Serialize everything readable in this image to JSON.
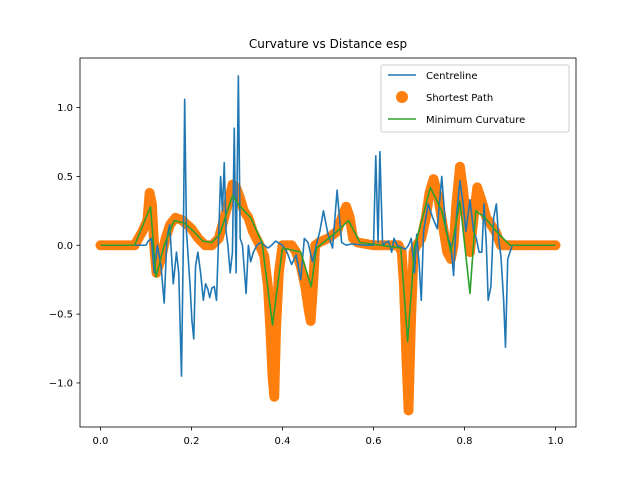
{
  "chart_data": {
    "type": "line",
    "title": "Curvature vs Distance esp",
    "xlabel": "",
    "ylabel": "",
    "xlim": [
      -0.045,
      1.045
    ],
    "ylim": [
      -1.32,
      1.36
    ],
    "xticks": [
      0.0,
      0.2,
      0.4,
      0.6,
      0.8,
      1.0
    ],
    "xtick_labels": [
      "0.0",
      "0.2",
      "0.4",
      "0.6",
      "0.8",
      "1.0"
    ],
    "yticks": [
      -1.0,
      -0.5,
      0.0,
      0.5,
      1.0
    ],
    "ytick_labels": [
      "−1.0",
      "−0.5",
      "0.0",
      "0.5",
      "1.0"
    ],
    "grid": false,
    "legend_position": "upper right",
    "series": [
      {
        "name": "Centreline",
        "kind": "line",
        "color": "#1f77b4",
        "points": [
          [
            0.0,
            0.0
          ],
          [
            0.1,
            0.0
          ],
          [
            0.105,
            0.03
          ],
          [
            0.112,
            0.05
          ],
          [
            0.118,
            -0.2
          ],
          [
            0.125,
            0.0
          ],
          [
            0.133,
            -0.15
          ],
          [
            0.14,
            -0.42
          ],
          [
            0.146,
            0.05
          ],
          [
            0.152,
            0.15
          ],
          [
            0.16,
            -0.28
          ],
          [
            0.167,
            -0.05
          ],
          [
            0.172,
            -0.2
          ],
          [
            0.178,
            -0.95
          ],
          [
            0.182,
            0.0
          ],
          [
            0.185,
            1.06
          ],
          [
            0.189,
            0.1
          ],
          [
            0.193,
            -0.1
          ],
          [
            0.197,
            -0.3
          ],
          [
            0.201,
            -0.55
          ],
          [
            0.205,
            -0.68
          ],
          [
            0.209,
            -0.15
          ],
          [
            0.214,
            -0.05
          ],
          [
            0.22,
            -0.2
          ],
          [
            0.226,
            -0.4
          ],
          [
            0.231,
            -0.28
          ],
          [
            0.236,
            -0.32
          ],
          [
            0.24,
            -0.38
          ],
          [
            0.245,
            -0.31
          ],
          [
            0.25,
            -0.3
          ],
          [
            0.255,
            -0.4
          ],
          [
            0.26,
            0.1
          ],
          [
            0.264,
            0.5
          ],
          [
            0.268,
            0.25
          ],
          [
            0.272,
            0.6
          ],
          [
            0.276,
            0.1
          ],
          [
            0.28,
            0.0
          ],
          [
            0.285,
            -0.2
          ],
          [
            0.29,
            -0.05
          ],
          [
            0.294,
            0.85
          ],
          [
            0.298,
            -0.2
          ],
          [
            0.303,
            1.23
          ],
          [
            0.307,
            0.05
          ],
          [
            0.312,
            0.0
          ],
          [
            0.32,
            -0.35
          ],
          [
            0.325,
            0.0
          ],
          [
            0.33,
            -0.12
          ],
          [
            0.336,
            -0.05
          ],
          [
            0.344,
            0.0
          ],
          [
            0.352,
            0.02
          ],
          [
            0.36,
            0.0
          ],
          [
            0.368,
            -0.02
          ],
          [
            0.376,
            0.0
          ],
          [
            0.385,
            0.03
          ],
          [
            0.4,
            0.0
          ],
          [
            0.41,
            -0.05
          ],
          [
            0.42,
            -0.14
          ],
          [
            0.43,
            -0.07
          ],
          [
            0.44,
            -0.25
          ],
          [
            0.448,
            0.05
          ],
          [
            0.456,
            0.02
          ],
          [
            0.466,
            -0.12
          ],
          [
            0.474,
            0.0
          ],
          [
            0.482,
            0.1
          ],
          [
            0.49,
            0.25
          ],
          [
            0.5,
            0.08
          ],
          [
            0.51,
            -0.02
          ],
          [
            0.52,
            0.4
          ],
          [
            0.53,
            0.02
          ],
          [
            0.54,
            0.0
          ],
          [
            0.552,
            0.01
          ],
          [
            0.58,
            0.0
          ],
          [
            0.6,
            0.0
          ],
          [
            0.605,
            0.65
          ],
          [
            0.61,
            0.02
          ],
          [
            0.614,
            0.68
          ],
          [
            0.62,
            0.0
          ],
          [
            0.627,
            0.02
          ],
          [
            0.633,
            0.03
          ],
          [
            0.64,
            -0.05
          ],
          [
            0.645,
            0.05
          ],
          [
            0.652,
            0.0
          ],
          [
            0.67,
            -0.03
          ],
          [
            0.677,
            0.0
          ],
          [
            0.683,
            0.05
          ],
          [
            0.69,
            -0.2
          ],
          [
            0.695,
            0.08
          ],
          [
            0.7,
            -0.12
          ],
          [
            0.705,
            -0.4
          ],
          [
            0.71,
            0.1
          ],
          [
            0.72,
            0.3
          ],
          [
            0.73,
            0.2
          ],
          [
            0.74,
            0.12
          ],
          [
            0.75,
            0.5
          ],
          [
            0.758,
            0.15
          ],
          [
            0.764,
            0.05
          ],
          [
            0.77,
            0.0
          ],
          [
            0.776,
            -0.22
          ],
          [
            0.782,
            0.2
          ],
          [
            0.79,
            0.47
          ],
          [
            0.797,
            0.3
          ],
          [
            0.803,
            0.1
          ],
          [
            0.812,
            0.33
          ],
          [
            0.82,
            0.1
          ],
          [
            0.826,
            0.05
          ],
          [
            0.832,
            -0.05
          ],
          [
            0.838,
            -0.05
          ],
          [
            0.843,
            0.3
          ],
          [
            0.848,
            0.0
          ],
          [
            0.852,
            -0.4
          ],
          [
            0.858,
            -0.3
          ],
          [
            0.864,
            0.2
          ],
          [
            0.87,
            0.3
          ],
          [
            0.875,
            0.05
          ],
          [
            0.88,
            -0.08
          ],
          [
            0.886,
            -0.4
          ],
          [
            0.89,
            -0.74
          ],
          [
            0.895,
            -0.1
          ],
          [
            0.9,
            -0.05
          ],
          [
            0.905,
            0.0
          ],
          [
            1.0,
            0.0
          ]
        ]
      },
      {
        "name": "Shortest Path",
        "kind": "scatter",
        "color": "#ff7f0e",
        "segments": [
          [
            0.0,
            0.0
          ],
          [
            0.075,
            0.0
          ],
          [
            0.092,
            0.1
          ],
          [
            0.103,
            0.18
          ],
          [
            0.108,
            0.38
          ],
          [
            0.113,
            0.3
          ],
          [
            0.118,
            0.0
          ],
          [
            0.123,
            -0.2
          ],
          [
            0.133,
            -0.1
          ],
          [
            0.143,
            0.05
          ],
          [
            0.153,
            0.15
          ],
          [
            0.165,
            0.2
          ],
          [
            0.18,
            0.18
          ],
          [
            0.2,
            0.12
          ],
          [
            0.215,
            0.05
          ],
          [
            0.23,
            0.0
          ],
          [
            0.245,
            0.0
          ],
          [
            0.26,
            0.05
          ],
          [
            0.272,
            0.2
          ],
          [
            0.282,
            0.32
          ],
          [
            0.29,
            0.44
          ],
          [
            0.298,
            0.42
          ],
          [
            0.306,
            0.35
          ],
          [
            0.315,
            0.25
          ],
          [
            0.325,
            0.2
          ],
          [
            0.335,
            0.1
          ],
          [
            0.35,
            0.0
          ],
          [
            0.36,
            -0.08
          ],
          [
            0.368,
            -0.3
          ],
          [
            0.373,
            -0.6
          ],
          [
            0.378,
            -0.95
          ],
          [
            0.382,
            -1.1
          ],
          [
            0.386,
            -0.6
          ],
          [
            0.392,
            -0.2
          ],
          [
            0.4,
            0.0
          ],
          [
            0.42,
            0.0
          ],
          [
            0.43,
            -0.05
          ],
          [
            0.44,
            -0.15
          ],
          [
            0.45,
            -0.3
          ],
          [
            0.458,
            -0.48
          ],
          [
            0.462,
            -0.55
          ],
          [
            0.467,
            -0.3
          ],
          [
            0.472,
            0.0
          ],
          [
            0.48,
            0.02
          ],
          [
            0.5,
            0.05
          ],
          [
            0.52,
            0.1
          ],
          [
            0.53,
            0.2
          ],
          [
            0.54,
            0.28
          ],
          [
            0.548,
            0.2
          ],
          [
            0.555,
            0.05
          ],
          [
            0.565,
            0.02
          ],
          [
            0.6,
            0.0
          ],
          [
            0.63,
            0.0
          ],
          [
            0.645,
            0.0
          ],
          [
            0.655,
            0.0
          ],
          [
            0.662,
            -0.05
          ],
          [
            0.667,
            -0.3
          ],
          [
            0.672,
            -0.8
          ],
          [
            0.677,
            -1.2
          ],
          [
            0.682,
            -0.6
          ],
          [
            0.688,
            -0.05
          ],
          [
            0.695,
            0.0
          ],
          [
            0.705,
            0.05
          ],
          [
            0.715,
            0.2
          ],
          [
            0.723,
            0.38
          ],
          [
            0.732,
            0.48
          ],
          [
            0.742,
            0.35
          ],
          [
            0.752,
            0.15
          ],
          [
            0.762,
            -0.05
          ],
          [
            0.77,
            -0.1
          ],
          [
            0.776,
            0.0
          ],
          [
            0.782,
            0.3
          ],
          [
            0.79,
            0.57
          ],
          [
            0.797,
            0.4
          ],
          [
            0.805,
            0.15
          ],
          [
            0.812,
            -0.05
          ],
          [
            0.82,
            0.2
          ],
          [
            0.828,
            0.42
          ],
          [
            0.838,
            0.32
          ],
          [
            0.848,
            0.2
          ],
          [
            0.858,
            0.15
          ],
          [
            0.868,
            0.1
          ],
          [
            0.88,
            0.0
          ],
          [
            0.9,
            0.0
          ],
          [
            1.0,
            0.0
          ]
        ]
      },
      {
        "name": "Minimum Curvature",
        "kind": "line",
        "color": "#2ca02c",
        "points": [
          [
            0.0,
            0.0
          ],
          [
            0.075,
            0.0
          ],
          [
            0.11,
            0.28
          ],
          [
            0.122,
            -0.23
          ],
          [
            0.14,
            0.0
          ],
          [
            0.162,
            0.18
          ],
          [
            0.185,
            0.16
          ],
          [
            0.205,
            0.1
          ],
          [
            0.225,
            0.03
          ],
          [
            0.245,
            0.02
          ],
          [
            0.262,
            0.08
          ],
          [
            0.29,
            0.36
          ],
          [
            0.302,
            0.3
          ],
          [
            0.33,
            0.2
          ],
          [
            0.355,
            0.02
          ],
          [
            0.378,
            -0.58
          ],
          [
            0.4,
            -0.02
          ],
          [
            0.44,
            -0.05
          ],
          [
            0.463,
            -0.3
          ],
          [
            0.475,
            -0.02
          ],
          [
            0.52,
            0.1
          ],
          [
            0.545,
            0.18
          ],
          [
            0.57,
            0.02
          ],
          [
            0.66,
            -0.02
          ],
          [
            0.675,
            -0.7
          ],
          [
            0.69,
            -0.02
          ],
          [
            0.725,
            0.42
          ],
          [
            0.75,
            0.25
          ],
          [
            0.77,
            -0.05
          ],
          [
            0.79,
            0.32
          ],
          [
            0.812,
            -0.35
          ],
          [
            0.825,
            0.25
          ],
          [
            0.845,
            0.2
          ],
          [
            0.87,
            0.1
          ],
          [
            0.9,
            0.0
          ],
          [
            1.0,
            0.0
          ]
        ]
      }
    ]
  }
}
